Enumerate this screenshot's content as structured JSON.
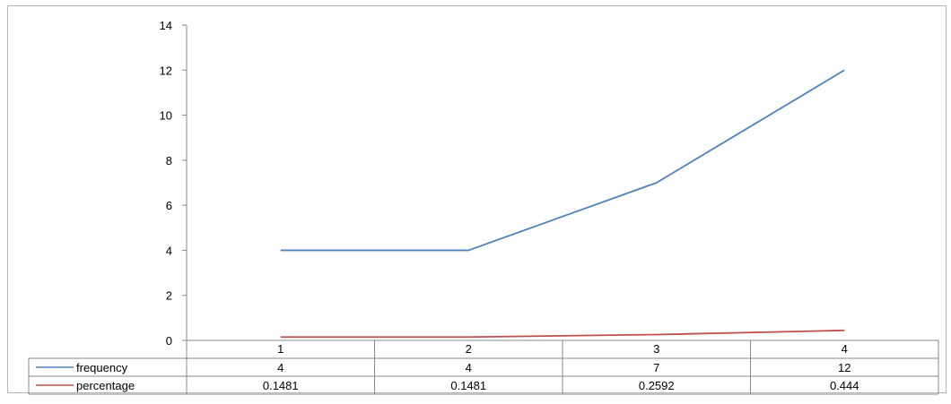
{
  "chart_data": {
    "type": "line",
    "categories": [
      "1",
      "2",
      "3",
      "4"
    ],
    "series": [
      {
        "name": "frequency",
        "values": [
          4,
          4,
          7,
          12
        ],
        "labels": [
          "4",
          "4",
          "7",
          "12"
        ],
        "color": "#4f81bd"
      },
      {
        "name": "percentage",
        "values": [
          0.1481,
          0.1481,
          0.2592,
          0.444
        ],
        "labels": [
          "0.1481",
          "0.1481",
          "0.2592",
          "0.444"
        ],
        "color": "#c0504d"
      }
    ],
    "ylim": [
      0,
      14
    ],
    "yticks": [
      "0",
      "2",
      "4",
      "6",
      "8",
      "10",
      "12",
      "14"
    ],
    "grid": false,
    "legend": "data-table"
  }
}
